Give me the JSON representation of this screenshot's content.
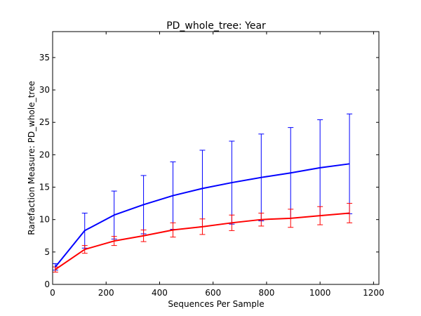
{
  "chart_data": {
    "type": "line",
    "title": "PD_whole_tree: Year",
    "xlabel": "Sequences Per Sample",
    "ylabel": "Rarefaction Measure: PD_whole_tree",
    "xlim": [
      0,
      1220
    ],
    "ylim": [
      0,
      39
    ],
    "x_ticks": [
      0,
      200,
      400,
      600,
      800,
      1000,
      1200
    ],
    "y_ticks": [
      0,
      5,
      10,
      15,
      20,
      25,
      30,
      35
    ],
    "grid": false,
    "legend": "none",
    "x": [
      10,
      120,
      230,
      340,
      450,
      560,
      670,
      780,
      890,
      1000,
      1110
    ],
    "series": [
      {
        "color": "#0000ff",
        "values": [
          2.7,
          8.3,
          10.7,
          12.3,
          13.7,
          14.8,
          15.7,
          16.5,
          17.2,
          18.0,
          18.6
        ],
        "error": [
          0.5,
          2.7,
          3.7,
          4.5,
          5.2,
          5.9,
          6.4,
          6.7,
          7.0,
          7.4,
          7.7
        ]
      },
      {
        "color": "#ff0000",
        "values": [
          2.3,
          5.4,
          6.7,
          7.5,
          8.4,
          8.9,
          9.5,
          10.0,
          10.2,
          10.6,
          11.0
        ],
        "error": [
          0.4,
          0.6,
          0.7,
          0.9,
          1.1,
          1.2,
          1.2,
          1.0,
          1.4,
          1.4,
          1.5
        ]
      }
    ]
  }
}
